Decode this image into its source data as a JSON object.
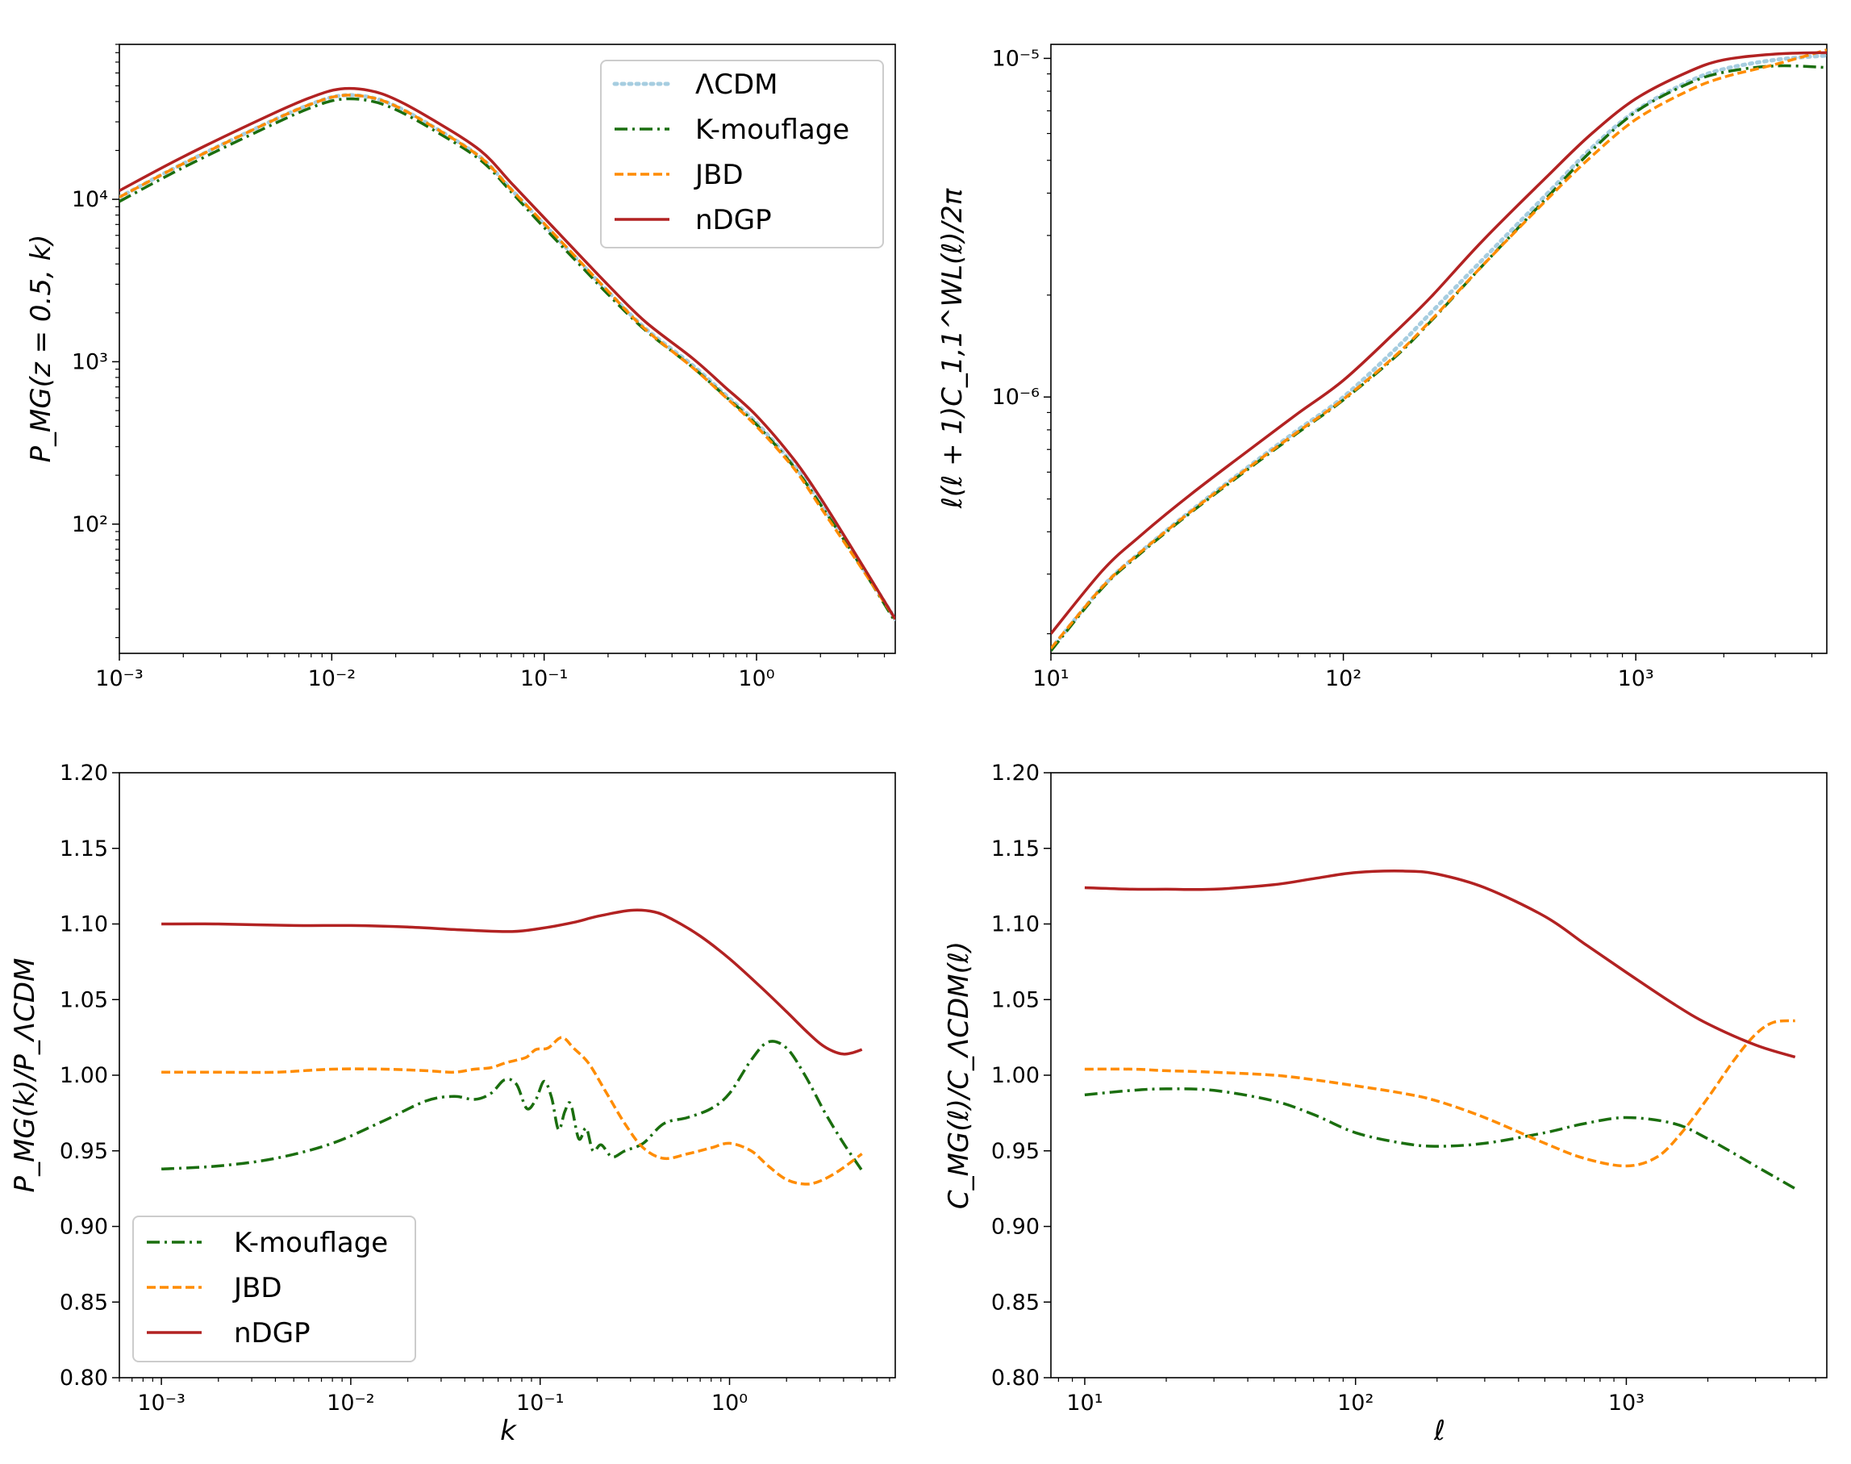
{
  "colors": {
    "lcdm": "#a6cde0",
    "kmouflage": "#1a6e0e",
    "jbd": "#ff8c00",
    "ndgp": "#b22222"
  },
  "chart_data": [
    {
      "id": "pk",
      "type": "line",
      "xscale": "log",
      "yscale": "log",
      "xlim": [
        0.001,
        4.5
      ],
      "ylim": [
        16,
        90000
      ],
      "xlabel": "",
      "ylabel": "P_MG(z = 0.5, k)",
      "xticks": [
        "10⁻³",
        "10⁻²",
        "10⁻¹",
        "10⁰"
      ],
      "yticks": [
        "10²",
        "10³",
        "10⁴"
      ],
      "legend": {
        "location": "upper right",
        "entries": [
          "ΛCDM",
          "K-mouflage",
          "JBD",
          "nDGP"
        ]
      },
      "series": [
        {
          "name": "ΛCDM",
          "style": "dotted",
          "x": [
            0.001,
            0.002,
            0.005,
            0.008,
            0.011,
            0.015,
            0.02,
            0.03,
            0.05,
            0.07,
            0.1,
            0.15,
            0.2,
            0.3,
            0.5,
            0.7,
            1.0,
            1.5,
            2.0,
            3.0,
            4.5
          ],
          "y": [
            10300,
            16600,
            29600,
            38600,
            43500,
            42600,
            37500,
            28000,
            18200,
            11500,
            7000,
            4000,
            2700,
            1600,
            950,
            640,
            420,
            230,
            135,
            60,
            26
          ]
        },
        {
          "name": "K-mouflage",
          "style": "dashdot",
          "x": [
            0.001,
            0.002,
            0.005,
            0.008,
            0.011,
            0.015,
            0.02,
            0.03,
            0.05,
            0.07,
            0.1,
            0.15,
            0.2,
            0.3,
            0.5,
            0.7,
            1.0,
            1.5,
            2.0,
            3.0,
            4.5
          ],
          "y": [
            9700,
            15700,
            28000,
            36700,
            41300,
            40500,
            35700,
            26800,
            17500,
            11100,
            6700,
            3850,
            2600,
            1560,
            925,
            625,
            410,
            225,
            132,
            59,
            25
          ]
        },
        {
          "name": "JBD",
          "style": "dashed",
          "x": [
            0.001,
            0.002,
            0.005,
            0.008,
            0.011,
            0.015,
            0.02,
            0.03,
            0.05,
            0.07,
            0.1,
            0.15,
            0.2,
            0.3,
            0.5,
            0.7,
            1.0,
            1.5,
            2.0,
            3.0,
            4.5
          ],
          "y": [
            10300,
            16600,
            29600,
            38600,
            43500,
            42600,
            37500,
            28000,
            18200,
            11500,
            7100,
            4050,
            2720,
            1580,
            920,
            620,
            400,
            220,
            127,
            58,
            26
          ]
        },
        {
          "name": "nDGP",
          "style": "solid",
          "x": [
            0.001,
            0.002,
            0.005,
            0.008,
            0.011,
            0.015,
            0.02,
            0.03,
            0.05,
            0.07,
            0.1,
            0.15,
            0.2,
            0.3,
            0.5,
            0.7,
            1.0,
            1.5,
            2.0,
            3.0,
            4.5
          ],
          "y": [
            11300,
            18300,
            32600,
            42500,
            47800,
            46800,
            41200,
            30800,
            20000,
            12600,
            7700,
            4400,
            2970,
            1760,
            1050,
            710,
            465,
            250,
            145,
            62,
            26
          ]
        }
      ]
    },
    {
      "id": "cl",
      "type": "line",
      "xscale": "log",
      "yscale": "log",
      "xlim": [
        10,
        4500
      ],
      "ylim": [
        1.75e-07,
        1.1e-05
      ],
      "xlabel": "",
      "ylabel": "ℓ(ℓ + 1)C_1,1^WL(ℓ)/2π",
      "xticks": [
        "10¹",
        "10²",
        "10³"
      ],
      "yticks": [
        "10⁻⁶",
        "10⁻⁵"
      ],
      "series": [
        {
          "name": "ΛCDM",
          "style": "dotted",
          "x": [
            10,
            15,
            20,
            30,
            50,
            70,
            100,
            150,
            200,
            300,
            500,
            700,
            1000,
            1500,
            2000,
            3000,
            4500
          ],
          "y": [
            1.8e-07,
            2.75e-07,
            3.45e-07,
            4.6e-07,
            6.45e-07,
            8e-07,
            1e-06,
            1.38e-06,
            1.78e-06,
            2.55e-06,
            4e-06,
            5.4e-06,
            7e-06,
            8.5e-06,
            9.3e-06,
            9.9e-06,
            1.02e-05
          ]
        },
        {
          "name": "K-mouflage",
          "style": "dashdot",
          "x": [
            10,
            15,
            20,
            30,
            50,
            70,
            100,
            150,
            200,
            300,
            500,
            700,
            1000,
            1500,
            2000,
            3000,
            4500
          ],
          "y": [
            1.78e-07,
            2.73e-07,
            3.42e-07,
            4.55e-07,
            6.35e-07,
            7.85e-07,
            9.8e-07,
            1.31e-06,
            1.68e-06,
            2.45e-06,
            3.9e-06,
            5.3e-06,
            6.95e-06,
            8.4e-06,
            9.1e-06,
            9.5e-06,
            9.4e-06
          ]
        },
        {
          "name": "JBD",
          "style": "dashed",
          "x": [
            10,
            15,
            20,
            30,
            50,
            70,
            100,
            150,
            200,
            300,
            500,
            700,
            1000,
            1500,
            2000,
            3000,
            4500
          ],
          "y": [
            1.81e-07,
            2.75e-07,
            3.45e-07,
            4.58e-07,
            6.4e-07,
            7.9e-07,
            9.85e-07,
            1.32e-06,
            1.69e-06,
            2.45e-06,
            3.85e-06,
            5.1e-06,
            6.6e-06,
            8e-06,
            8.8e-06,
            9.6e-06,
            1.06e-05
          ]
        },
        {
          "name": "nDGP",
          "style": "solid",
          "x": [
            10,
            15,
            20,
            30,
            50,
            70,
            100,
            150,
            200,
            300,
            500,
            700,
            1000,
            1500,
            2000,
            3000,
            4500
          ],
          "y": [
            2e-07,
            3.07e-07,
            3.86e-07,
            5.15e-07,
            7.2e-07,
            8.95e-07,
            1.12e-06,
            1.55e-06,
            1.98e-06,
            2.9e-06,
            4.5e-06,
            5.95e-06,
            7.6e-06,
            9.1e-06,
            9.9e-06,
            1.03e-05,
            1.04e-05
          ]
        }
      ]
    },
    {
      "id": "pk-ratio",
      "type": "line",
      "xscale": "log",
      "yscale": "linear",
      "xlim": [
        0.0006,
        7.5
      ],
      "ylim": [
        0.8,
        1.2
      ],
      "xlabel": "k",
      "ylabel": "P_MG(k)/P_ΛCDM",
      "xticks": [
        "10⁻³",
        "10⁻²",
        "10⁻¹",
        "10⁰"
      ],
      "yticks": [
        "0.80",
        "0.85",
        "0.90",
        "0.95",
        "1.00",
        "1.05",
        "1.10",
        "1.15",
        "1.20"
      ],
      "legend": {
        "location": "lower left",
        "entries": [
          "K-mouflage",
          "JBD",
          "nDGP"
        ]
      },
      "series": [
        {
          "name": "K-mouflage",
          "style": "dashdot",
          "x": [
            0.001,
            0.002,
            0.004,
            0.008,
            0.015,
            0.025,
            0.035,
            0.045,
            0.055,
            0.065,
            0.075,
            0.085,
            0.095,
            0.105,
            0.115,
            0.125,
            0.135,
            0.145,
            0.16,
            0.175,
            0.19,
            0.21,
            0.24,
            0.28,
            0.35,
            0.45,
            0.6,
            0.8,
            1.0,
            1.3,
            1.6,
            2.0,
            2.5,
            3.2,
            4.0,
            5.0
          ],
          "y": [
            0.938,
            0.94,
            0.945,
            0.955,
            0.97,
            0.983,
            0.986,
            0.984,
            0.988,
            0.997,
            0.994,
            0.978,
            0.984,
            0.996,
            0.985,
            0.964,
            0.976,
            0.981,
            0.958,
            0.965,
            0.95,
            0.954,
            0.946,
            0.95,
            0.955,
            0.968,
            0.972,
            0.978,
            0.988,
            1.01,
            1.022,
            1.018,
            1.0,
            0.975,
            0.955,
            0.937
          ]
        },
        {
          "name": "JBD",
          "style": "dashed",
          "x": [
            0.001,
            0.002,
            0.004,
            0.008,
            0.015,
            0.025,
            0.035,
            0.045,
            0.055,
            0.065,
            0.075,
            0.085,
            0.095,
            0.11,
            0.13,
            0.15,
            0.18,
            0.22,
            0.28,
            0.35,
            0.45,
            0.6,
            0.8,
            1.0,
            1.3,
            1.6,
            2.0,
            2.5,
            3.0,
            3.8,
            5.0
          ],
          "y": [
            1.002,
            1.002,
            1.002,
            1.004,
            1.004,
            1.003,
            1.002,
            1.004,
            1.005,
            1.008,
            1.01,
            1.012,
            1.017,
            1.018,
            1.025,
            1.018,
            1.008,
            0.99,
            0.968,
            0.952,
            0.945,
            0.948,
            0.952,
            0.955,
            0.95,
            0.94,
            0.931,
            0.928,
            0.93,
            0.937,
            0.948
          ]
        },
        {
          "name": "nDGP",
          "style": "solid",
          "x": [
            0.001,
            0.002,
            0.005,
            0.01,
            0.02,
            0.04,
            0.07,
            0.1,
            0.15,
            0.2,
            0.3,
            0.4,
            0.5,
            0.7,
            1.0,
            1.5,
            2.0,
            2.5,
            3.0,
            3.5,
            4.0,
            4.5,
            5.0
          ],
          "y": [
            1.1,
            1.1,
            1.099,
            1.099,
            1.098,
            1.096,
            1.095,
            1.097,
            1.101,
            1.105,
            1.109,
            1.108,
            1.103,
            1.092,
            1.077,
            1.057,
            1.042,
            1.03,
            1.021,
            1.016,
            1.014,
            1.015,
            1.017
          ]
        }
      ]
    },
    {
      "id": "cl-ratio",
      "type": "line",
      "xscale": "log",
      "yscale": "linear",
      "xlim": [
        7.5,
        5500
      ],
      "ylim": [
        0.8,
        1.2
      ],
      "xlabel": "ℓ",
      "ylabel": "C_MG(ℓ)/C_ΛCDM(ℓ)",
      "xticks": [
        "10¹",
        "10²",
        "10³"
      ],
      "yticks": [
        "0.80",
        "0.85",
        "0.90",
        "0.95",
        "1.00",
        "1.05",
        "1.10",
        "1.15",
        "1.20"
      ],
      "series": [
        {
          "name": "K-mouflage",
          "style": "dashdot",
          "x": [
            10,
            15,
            20,
            30,
            50,
            70,
            100,
            150,
            200,
            300,
            500,
            700,
            1000,
            1500,
            2000,
            3000,
            4200
          ],
          "y": [
            0.987,
            0.99,
            0.991,
            0.99,
            0.983,
            0.974,
            0.962,
            0.955,
            0.953,
            0.955,
            0.962,
            0.968,
            0.972,
            0.968,
            0.958,
            0.94,
            0.925
          ]
        },
        {
          "name": "JBD",
          "style": "dashed",
          "x": [
            10,
            15,
            20,
            30,
            50,
            70,
            100,
            150,
            200,
            300,
            500,
            700,
            1000,
            1300,
            1600,
            2000,
            2500,
            3000,
            3500,
            4200
          ],
          "y": [
            1.004,
            1.004,
            1.003,
            1.002,
            1.0,
            0.997,
            0.993,
            0.988,
            0.983,
            0.972,
            0.955,
            0.945,
            0.94,
            0.946,
            0.962,
            0.985,
            1.01,
            1.027,
            1.035,
            1.036
          ]
        },
        {
          "name": "nDGP",
          "style": "solid",
          "x": [
            10,
            15,
            20,
            30,
            50,
            70,
            100,
            150,
            200,
            300,
            500,
            700,
            1000,
            1500,
            2000,
            3000,
            4200
          ],
          "y": [
            1.124,
            1.123,
            1.123,
            1.123,
            1.126,
            1.13,
            1.134,
            1.135,
            1.133,
            1.124,
            1.105,
            1.087,
            1.068,
            1.047,
            1.034,
            1.02,
            1.012
          ]
        }
      ]
    }
  ]
}
